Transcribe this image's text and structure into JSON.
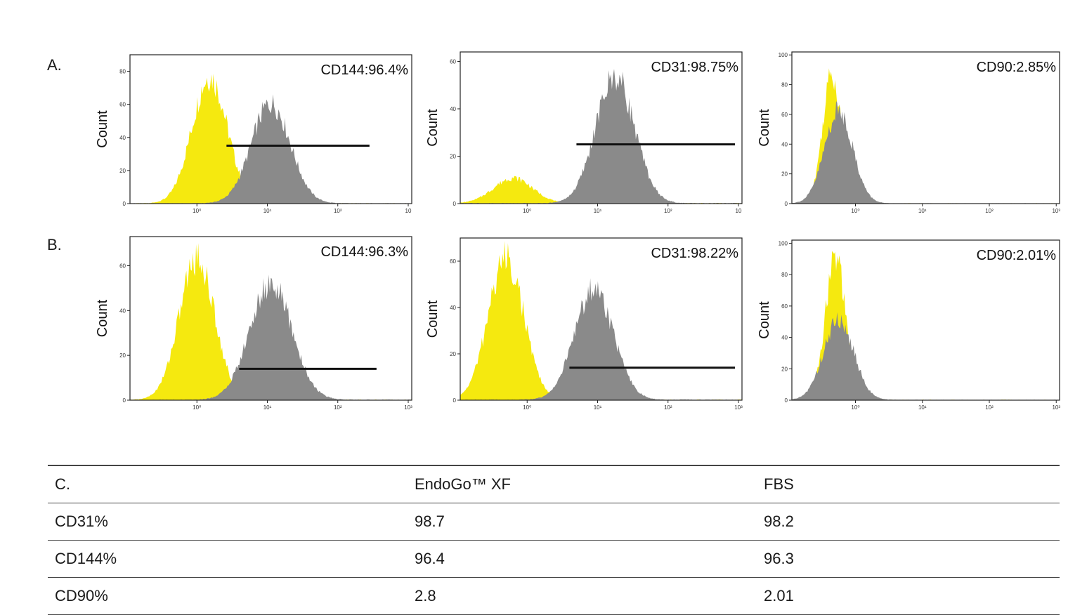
{
  "labels": {
    "row_a": "A.",
    "row_b": "B."
  },
  "colors": {
    "isotype": "#f5e90f",
    "stained": "#8a8a8a",
    "gate": "#111111"
  },
  "chart_data": [
    {
      "type": "area",
      "row": "A",
      "marker": "CD144",
      "annotation": "CD144:96.4%",
      "ylabel": "Count",
      "yticks": [
        0,
        20,
        40,
        60,
        80
      ],
      "xticks": [
        "10⁰",
        "10¹",
        "10²",
        "10"
      ],
      "ylim": [
        0,
        90
      ],
      "peaks": {
        "isotype": {
          "pos": 0.18,
          "width": 0.5,
          "height": 86
        },
        "stained": {
          "pos": 1.05,
          "width": 0.55,
          "height": 68
        }
      },
      "gate": {
        "level": 35,
        "from": 0.42,
        "to": 2.45
      }
    },
    {
      "type": "area",
      "row": "A",
      "marker": "CD31",
      "annotation": "CD31:98.75%",
      "ylabel": "Count",
      "yticks": [
        0,
        20,
        40,
        60
      ],
      "xticks": [
        "10⁰",
        "10¹",
        "10²",
        "10"
      ],
      "ylim": [
        0,
        64
      ],
      "peaks": {
        "isotype": {
          "pos": -0.2,
          "width": 0.55,
          "height": 12
        },
        "stained": {
          "pos": 1.25,
          "width": 0.55,
          "height": 60
        }
      },
      "gate": {
        "level": 25,
        "from": 0.7,
        "to": 2.95
      }
    },
    {
      "type": "area",
      "row": "A",
      "marker": "CD90",
      "annotation": "CD90:2.85%",
      "ylabel": "Count",
      "yticks": [
        0,
        20,
        40,
        60,
        80,
        100
      ],
      "xticks": [
        "10⁰",
        "10¹",
        "10²",
        "10³"
      ],
      "ylim": [
        0,
        102
      ],
      "peaks": {
        "isotype": {
          "pos": -0.35,
          "width": 0.28,
          "height": 98
        },
        "stained": {
          "pos": -0.25,
          "width": 0.42,
          "height": 70
        }
      },
      "gate": null
    },
    {
      "type": "area",
      "row": "B",
      "marker": "CD144",
      "annotation": "CD144:96.3%",
      "ylabel": "Count",
      "yticks": [
        0,
        20,
        40,
        60
      ],
      "xticks": [
        "10⁰",
        "10¹",
        "10²",
        "10³"
      ],
      "ylim": [
        0,
        73
      ],
      "peaks": {
        "isotype": {
          "pos": 0.0,
          "width": 0.5,
          "height": 71
        },
        "stained": {
          "pos": 1.05,
          "width": 0.6,
          "height": 58
        }
      },
      "gate": {
        "level": 14,
        "from": 0.6,
        "to": 2.55
      }
    },
    {
      "type": "area",
      "row": "B",
      "marker": "CD31",
      "annotation": "CD31:98.22%",
      "ylabel": "Count",
      "yticks": [
        0,
        20,
        40,
        60
      ],
      "xticks": [
        "10⁰",
        "10¹",
        "10²",
        "10³"
      ],
      "ylim": [
        0,
        70
      ],
      "peaks": {
        "isotype": {
          "pos": -0.3,
          "width": 0.5,
          "height": 69
        },
        "stained": {
          "pos": 0.95,
          "width": 0.55,
          "height": 54
        }
      },
      "gate": {
        "level": 14,
        "from": 0.6,
        "to": 2.95
      }
    },
    {
      "type": "area",
      "row": "B",
      "marker": "CD90",
      "annotation": "CD90:2.01%",
      "ylabel": "Count",
      "yticks": [
        0,
        20,
        40,
        60,
        80,
        100
      ],
      "xticks": [
        "10⁰",
        "10¹",
        "10²",
        "10³"
      ],
      "ylim": [
        0,
        102
      ],
      "peaks": {
        "isotype": {
          "pos": -0.3,
          "width": 0.3,
          "height": 102
        },
        "stained": {
          "pos": -0.25,
          "width": 0.45,
          "height": 57
        }
      },
      "gate": null
    }
  ],
  "table": {
    "headers": [
      "C.",
      "EndoGo™ XF",
      "FBS"
    ],
    "rows": [
      [
        "CD31%",
        "98.7",
        "98.2"
      ],
      [
        "CD144%",
        "96.4",
        "96.3"
      ],
      [
        "CD90%",
        "2.8",
        "2.01"
      ]
    ]
  }
}
